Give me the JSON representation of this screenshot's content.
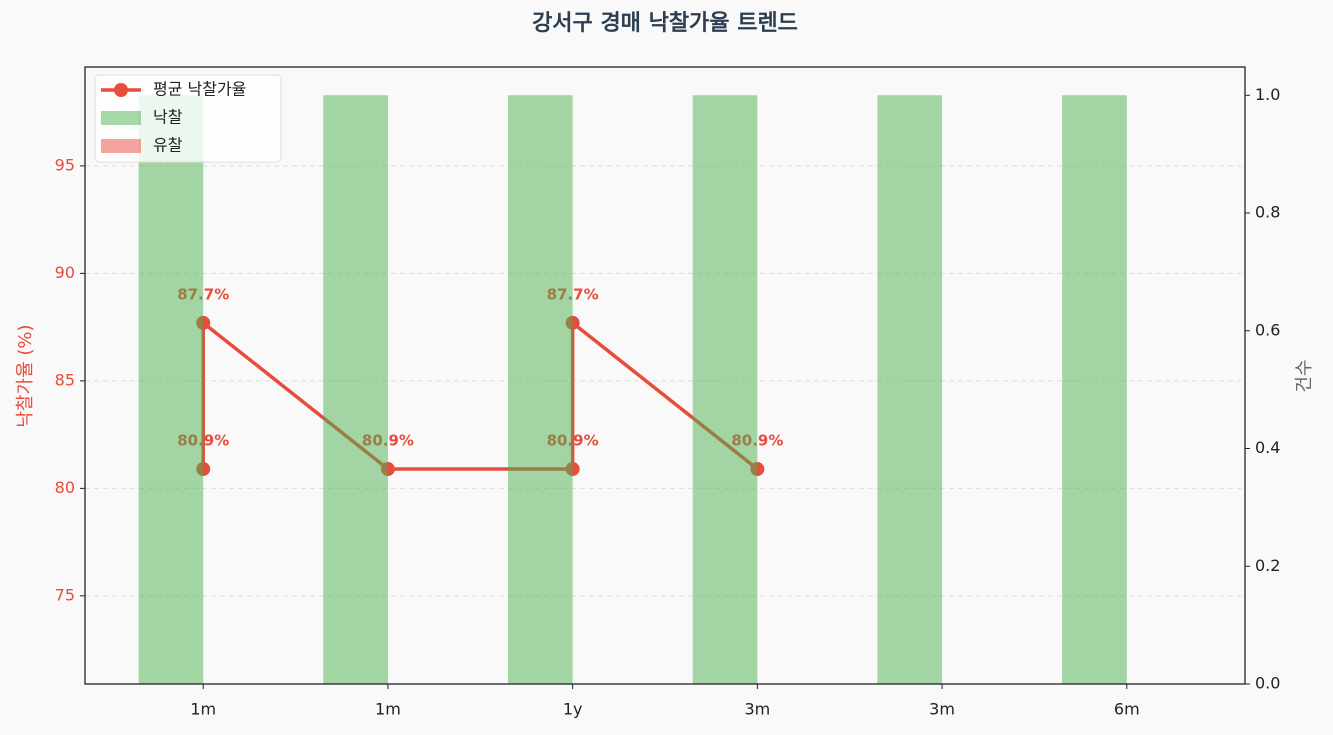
{
  "chart_data": {
    "type": "combo",
    "title": "강서구 경매 낙찰가율 트렌드",
    "ylabel": "낙찰가율 (%)",
    "y2label": "건수",
    "categories": [
      "1m",
      "1m",
      "1y",
      "3m",
      "3m",
      "6m"
    ],
    "xlim": [
      -0.64,
      5.64
    ],
    "ylim": [
      70.9,
      99.6
    ],
    "yticks": [
      75,
      80,
      85,
      90,
      95
    ],
    "y2lim": [
      0,
      1.048
    ],
    "y2ticks": [
      {
        "value": 0,
        "label": "0.0"
      },
      0.2,
      0.4,
      0.6,
      0.8,
      {
        "value": 1,
        "label": "1.0"
      }
    ],
    "grid": true,
    "legend": "upper left",
    "series": [
      {
        "name": "평균 낙찰가율",
        "type": "line",
        "color": "#e74c3c",
        "x": [
          0,
          0,
          1,
          2,
          2,
          3
        ],
        "values": [
          80.9,
          87.7,
          80.9,
          80.9,
          87.7,
          80.9
        ],
        "value_labels": [
          "80.9%",
          "87.7%",
          "80.9%",
          "80.9%",
          "87.7%",
          "80.9%"
        ]
      },
      {
        "name": "낙찰",
        "type": "bar",
        "axis": "y2",
        "color": "#4caf50",
        "values": [
          1,
          1,
          1,
          1,
          1,
          1
        ]
      },
      {
        "name": "유찰",
        "type": "bar",
        "axis": "y2",
        "color": "#e74c3c",
        "values": [
          0,
          0,
          0,
          0,
          0,
          0
        ]
      }
    ]
  }
}
